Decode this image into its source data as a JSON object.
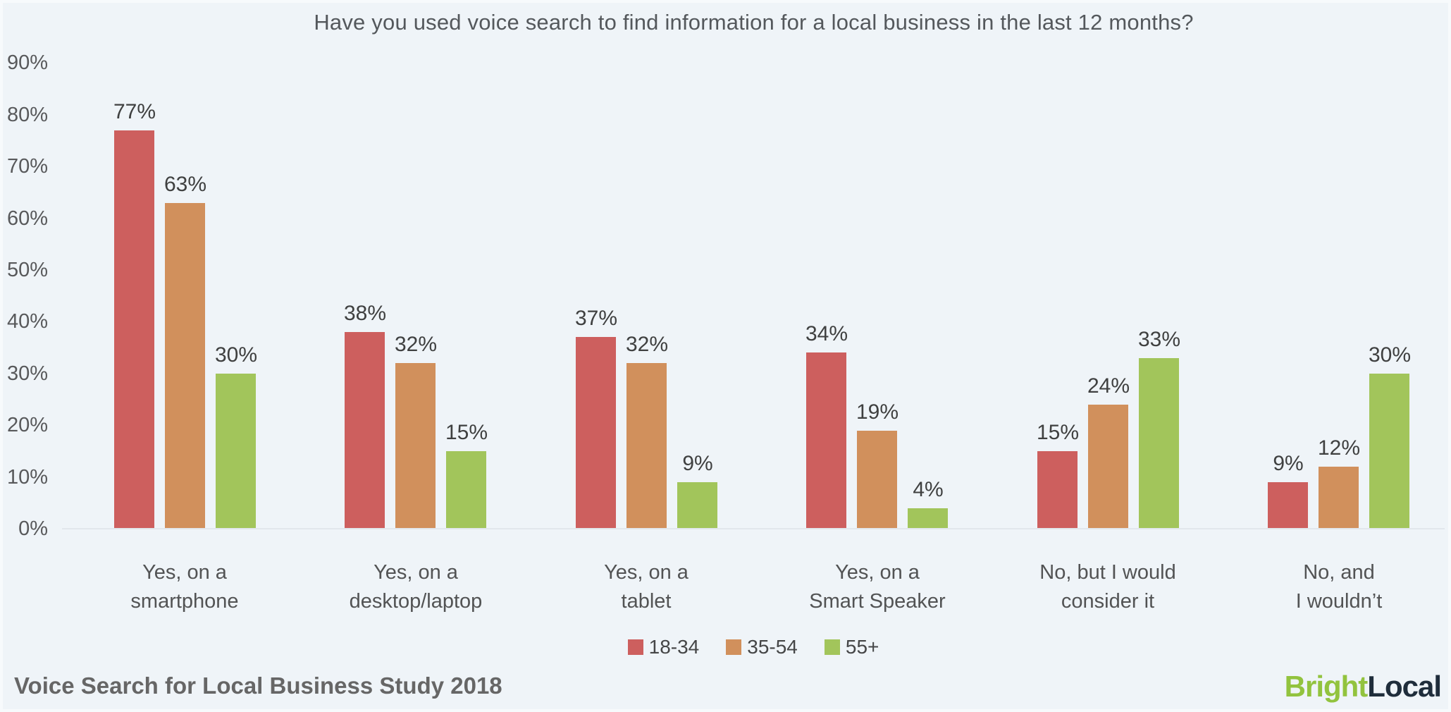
{
  "title": "Have you used voice search to find information for a local business in the last 12 months?",
  "chart_data": {
    "type": "bar",
    "title": "Have you used voice search to find information for a local business in the last 12 months?",
    "categories": [
      "Yes, on a smartphone",
      "Yes, on a desktop/laptop",
      "Yes, on a tablet",
      "Yes, on a Smart Speaker",
      "No, but I would consider it",
      "No, and I wouldn’t"
    ],
    "category_lines": [
      [
        "Yes, on a",
        "smartphone"
      ],
      [
        "Yes, on a",
        "desktop/laptop"
      ],
      [
        "Yes, on a",
        "tablet"
      ],
      [
        "Yes, on a",
        "Smart Speaker"
      ],
      [
        "No, but I would",
        "consider it"
      ],
      [
        "No, and",
        "I wouldn’t"
      ]
    ],
    "series": [
      {
        "name": "18-34",
        "color": "#cd5f5e",
        "values": [
          77,
          38,
          37,
          34,
          15,
          9
        ]
      },
      {
        "name": "35-54",
        "color": "#d1905c",
        "values": [
          63,
          32,
          32,
          19,
          24,
          12
        ]
      },
      {
        "name": "55+",
        "color": "#a2c55b",
        "values": [
          30,
          15,
          9,
          4,
          33,
          30
        ]
      }
    ],
    "value_suffix": "%",
    "y_ticks": [
      "0%",
      "10%",
      "20%",
      "30%",
      "40%",
      "50%",
      "60%",
      "70%",
      "80%",
      "90%"
    ],
    "ylim": [
      0,
      90
    ],
    "grid": false,
    "legend_position": "bottom"
  },
  "footer": {
    "source": "Voice Search for Local Business Study 2018"
  },
  "logo": {
    "bright": "Bright",
    "local": "Local",
    "bright_color": "#92c33e",
    "local_color": "#1f2d3b"
  },
  "colors": {
    "background": "#eff4f8",
    "axis_line": "#e2e7ec",
    "title_text": "#54585c",
    "axis_text": "#58595b",
    "value_text": "#3f4040",
    "category_text": "#525354",
    "legend_text": "#454647",
    "footer_text": "#666666"
  }
}
